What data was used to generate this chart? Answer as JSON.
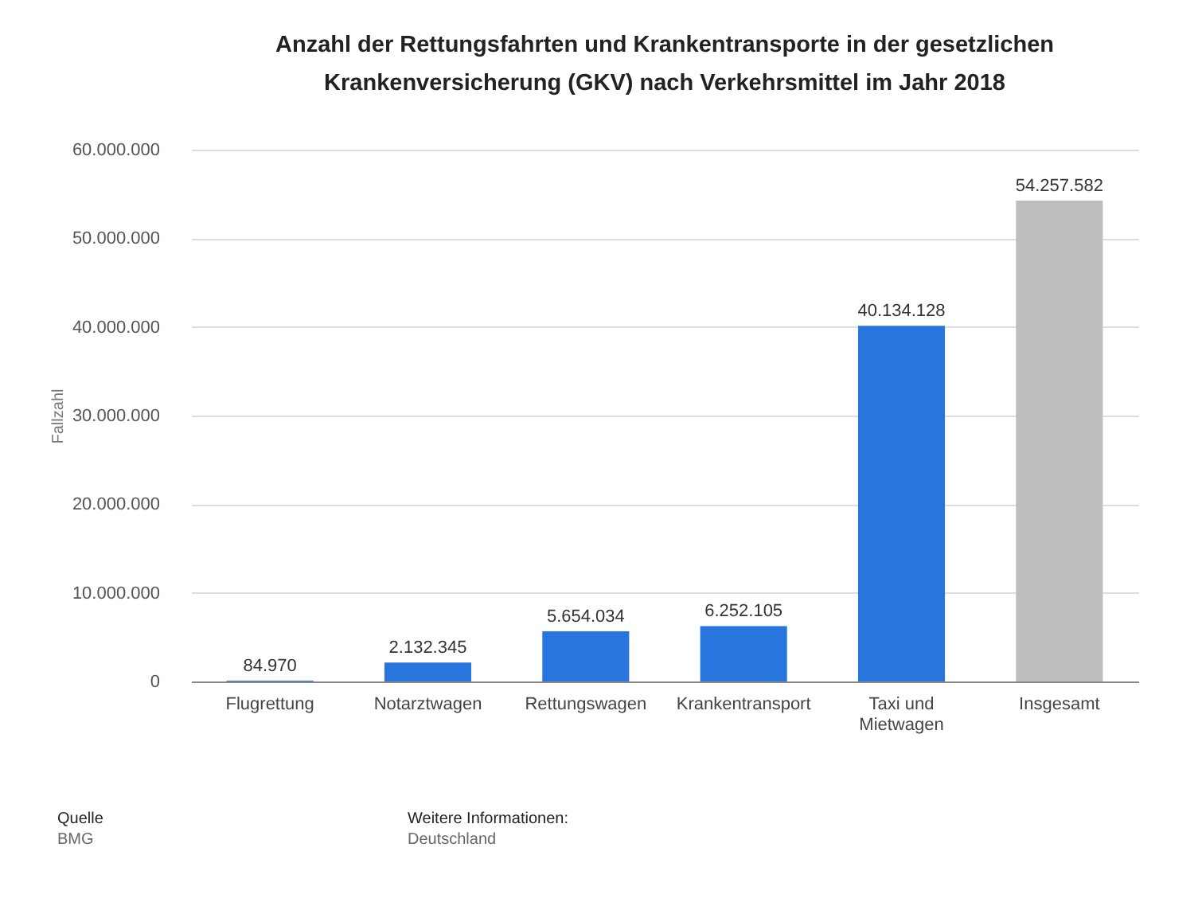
{
  "chart_data": {
    "type": "bar",
    "title": "Anzahl der Rettungsfahrten und Krankentransporte in der gesetzlichen Krankenversicherung (GKV) nach Verkehrsmittel im Jahr 2018",
    "categories": [
      "Flugrettung",
      "Notarztwagen",
      "Rettungswagen",
      "Krankentransport",
      "Taxi und Mietwagen",
      "Insgesamt"
    ],
    "values": [
      84970,
      2132345,
      5654034,
      6252105,
      40134128,
      54257582
    ],
    "value_labels": [
      "84.970",
      "2.132.345",
      "5.654.034",
      "6.252.105",
      "40.134.128",
      "54.257.582"
    ],
    "colors": [
      "#2876dd",
      "#2876dd",
      "#2876dd",
      "#2876dd",
      "#2876dd",
      "#bebebe"
    ],
    "ylabel": "Fallzahl",
    "ylim": [
      0,
      60000000
    ],
    "yticks": [
      0,
      {
        "value": 10000000,
        "label": "10.000.000"
      },
      {
        "value": 20000000,
        "label": "20.000.000"
      },
      {
        "value": 30000000,
        "label": "30.000.000"
      },
      {
        "value": 40000000,
        "label": "40.000.000"
      },
      {
        "value": 50000000,
        "label": "50.000.000"
      },
      {
        "value": 60000000,
        "label": "60.000.000"
      }
    ],
    "grid": "y",
    "annotations": [
      "Quelle",
      "BMG",
      "Weitere Informationen:",
      "Deutschland"
    ]
  }
}
